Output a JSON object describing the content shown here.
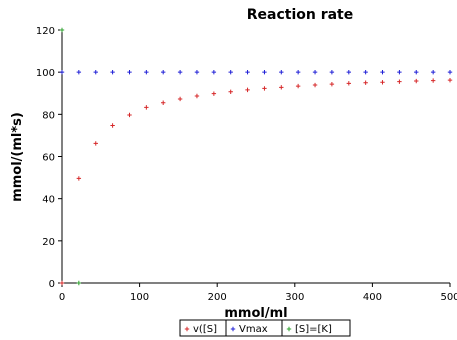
{
  "chart_data": {
    "type": "scatter",
    "title": "Reaction rate",
    "xlabel": "mmol/ml",
    "ylabel": "mmol/(ml*s)",
    "xlim": [
      0,
      500
    ],
    "ylim": [
      0,
      120
    ],
    "x_ticks": [
      "0",
      "100",
      "200",
      "300",
      "400",
      "500"
    ],
    "y_ticks": [
      "0",
      "20",
      "40",
      "60",
      "80",
      "100",
      "120"
    ],
    "grid": false,
    "legend_position": "bottom",
    "series": [
      {
        "name": "v([S]",
        "color": "#d62728",
        "points": [
          [
            0,
            0
          ],
          [
            21.7,
            49.6
          ],
          [
            43.5,
            66.2
          ],
          [
            65.2,
            74.7
          ],
          [
            87,
            79.7
          ],
          [
            108.7,
            83.3
          ],
          [
            130.4,
            85.5
          ],
          [
            152.2,
            87.3
          ],
          [
            173.9,
            88.7
          ],
          [
            195.7,
            89.8
          ],
          [
            217.4,
            90.7
          ],
          [
            239.1,
            91.6
          ],
          [
            260.9,
            92.3
          ],
          [
            282.6,
            92.8
          ],
          [
            304.3,
            93.4
          ],
          [
            326.1,
            93.9
          ],
          [
            347.8,
            94.3
          ],
          [
            369.6,
            94.7
          ],
          [
            391.3,
            95.0
          ],
          [
            413,
            95.2
          ],
          [
            434.8,
            95.5
          ],
          [
            456.5,
            95.8
          ],
          [
            478.3,
            96.0
          ],
          [
            500,
            96.2
          ]
        ]
      },
      {
        "name": "Vmax",
        "color": "#1f1fd6",
        "points": [
          [
            0,
            100
          ],
          [
            21.7,
            100
          ],
          [
            43.5,
            100
          ],
          [
            65.2,
            100
          ],
          [
            87,
            100
          ],
          [
            108.7,
            100
          ],
          [
            130.4,
            100
          ],
          [
            152.2,
            100
          ],
          [
            173.9,
            100
          ],
          [
            195.7,
            100
          ],
          [
            217.4,
            100
          ],
          [
            239.1,
            100
          ],
          [
            260.9,
            100
          ],
          [
            282.6,
            100
          ],
          [
            304.3,
            100
          ],
          [
            326.1,
            100
          ],
          [
            347.8,
            100
          ],
          [
            369.6,
            100
          ],
          [
            391.3,
            100
          ],
          [
            413,
            100
          ],
          [
            434.8,
            100
          ],
          [
            456.5,
            100
          ],
          [
            478.3,
            100
          ],
          [
            500,
            100
          ]
        ]
      },
      {
        "name": "[S]=[K]",
        "color": "#2ca02c",
        "points": [
          [
            21.7,
            0
          ],
          [
            0,
            120
          ]
        ]
      }
    ]
  }
}
